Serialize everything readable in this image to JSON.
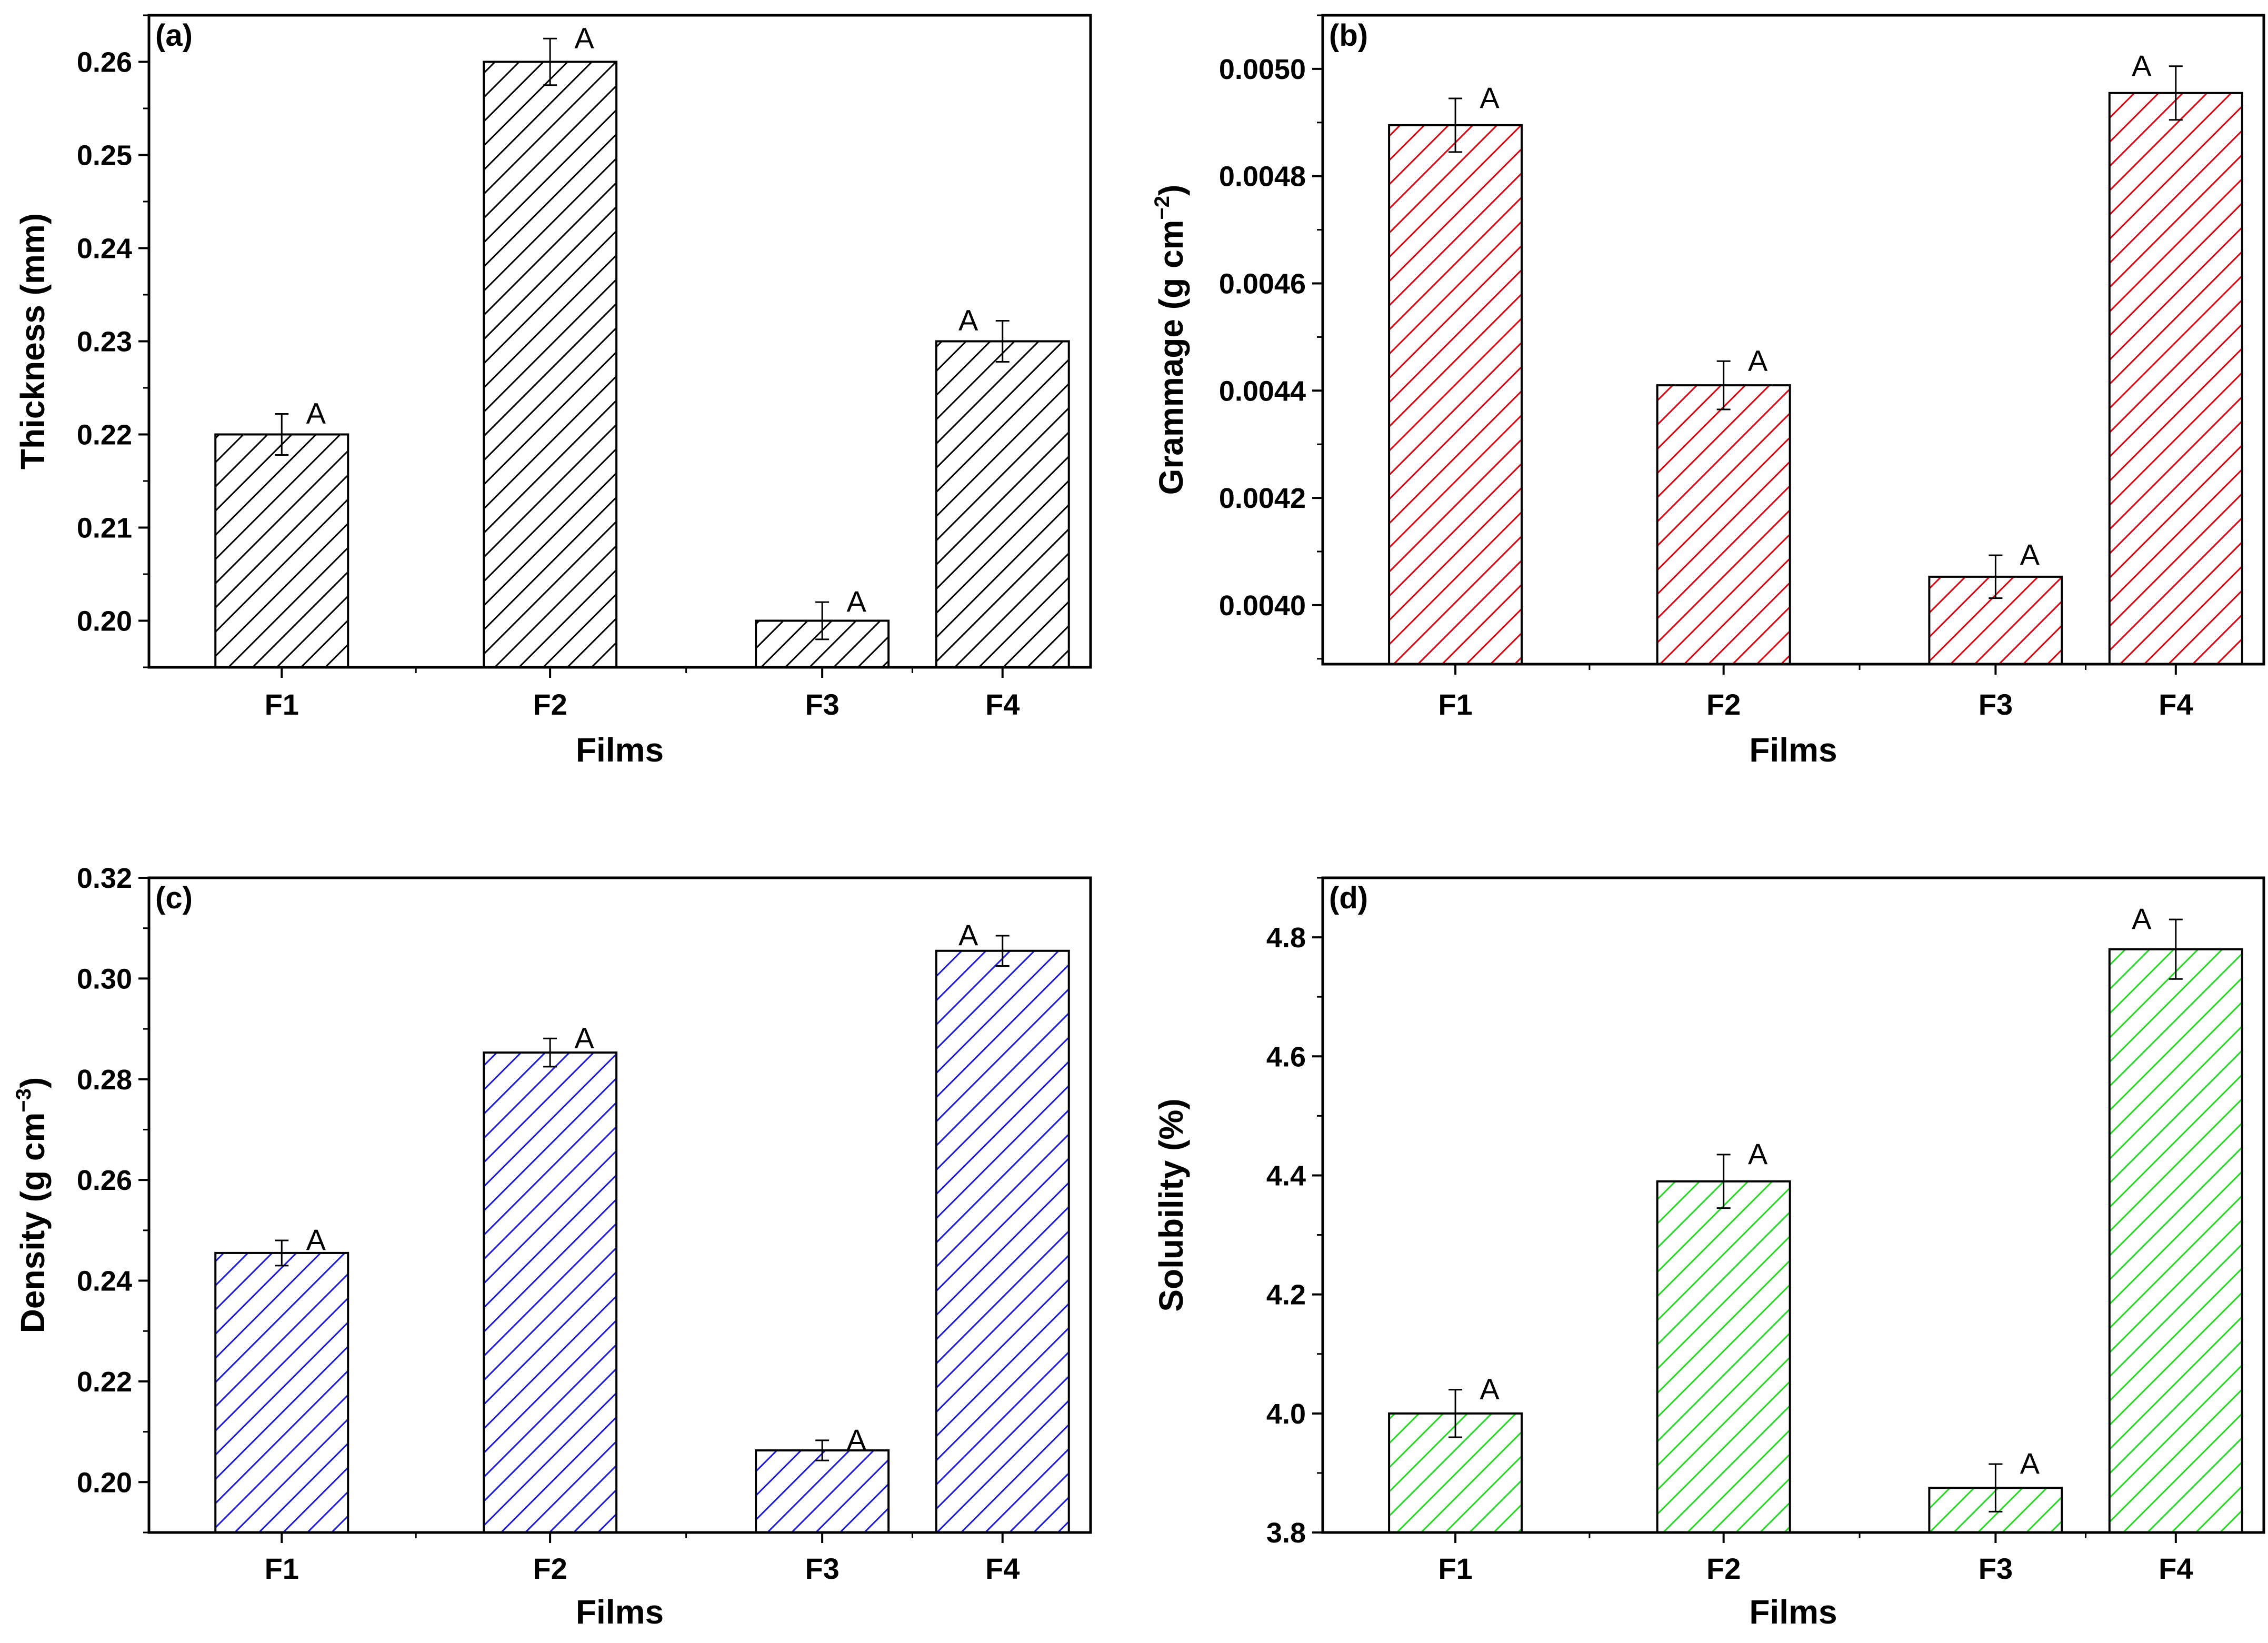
{
  "chart_data": [
    {
      "type": "bar",
      "panel": "(a)",
      "title": "",
      "xlabel": "Films",
      "ylabel": "Thickness (mm)",
      "ylabel_sup": "",
      "ylabel_end": "",
      "categories": [
        "F1",
        "F2",
        "F3",
        "F4"
      ],
      "values": [
        0.22,
        0.26,
        0.2,
        0.23
      ],
      "errors": [
        0.0022,
        0.0025,
        0.002,
        0.0022
      ],
      "significance": [
        "A",
        "A",
        "A",
        "A"
      ],
      "ylim": [
        0.195,
        0.265
      ],
      "yticks": [
        0.2,
        0.21,
        0.22,
        0.23,
        0.24,
        0.25,
        0.26
      ],
      "ytick_labels": [
        "0.20",
        "0.21",
        "0.22",
        "0.23",
        "0.24",
        "0.25",
        "0.26"
      ],
      "color": "#000000",
      "hatch": "diagonal"
    },
    {
      "type": "bar",
      "panel": "(b)",
      "title": "",
      "xlabel": "Films",
      "ylabel": "Grammage (g cm",
      "ylabel_sup": "−2",
      "ylabel_end": ")",
      "categories": [
        "F1",
        "F2",
        "F3",
        "F4"
      ],
      "values": [
        0.004895,
        0.00441,
        0.004053,
        0.004955
      ],
      "errors": [
        5e-05,
        4.5e-05,
        4e-05,
        5e-05
      ],
      "significance": [
        "A",
        "A",
        "A",
        "A"
      ],
      "ylim": [
        0.00389,
        0.0051
      ],
      "yticks": [
        0.004,
        0.0042,
        0.0044,
        0.0046,
        0.0048,
        0.005
      ],
      "ytick_labels": [
        "0.0040",
        "0.0042",
        "0.0044",
        "0.0046",
        "0.0048",
        "0.0050"
      ],
      "color": "#e3000f",
      "hatch": "diagonal"
    },
    {
      "type": "bar",
      "panel": "(c)",
      "title": "",
      "xlabel": "Films",
      "ylabel": "Density (g cm",
      "ylabel_sup": "−3",
      "ylabel_end": ")",
      "categories": [
        "F1",
        "F2",
        "F3",
        "F4"
      ],
      "values": [
        0.2455,
        0.2853,
        0.2063,
        0.3055
      ],
      "errors": [
        0.0025,
        0.0028,
        0.002,
        0.003
      ],
      "significance": [
        "A",
        "A",
        "A",
        "A"
      ],
      "ylim": [
        0.19,
        0.32
      ],
      "yticks": [
        0.2,
        0.22,
        0.24,
        0.26,
        0.28,
        0.3,
        0.32
      ],
      "ytick_labels": [
        "0.20",
        "0.22",
        "0.24",
        "0.26",
        "0.28",
        "0.30",
        "0.32"
      ],
      "color": "#1a1ae0",
      "hatch": "diagonal"
    },
    {
      "type": "bar",
      "panel": "(d)",
      "title": "",
      "xlabel": "Films",
      "ylabel": "Solubility (%)",
      "ylabel_sup": "",
      "ylabel_end": "",
      "categories": [
        "F1",
        "F2",
        "F3",
        "F4"
      ],
      "values": [
        4.0,
        4.39,
        3.875,
        4.78
      ],
      "errors": [
        0.04,
        0.045,
        0.04,
        0.05
      ],
      "significance": [
        "A",
        "A",
        "A",
        "A"
      ],
      "ylim": [
        3.8,
        4.9
      ],
      "yticks": [
        3.8,
        4.0,
        4.2,
        4.4,
        4.6,
        4.8
      ],
      "ytick_labels": [
        "3.8",
        "4.0",
        "4.2",
        "4.4",
        "4.6",
        "4.8"
      ],
      "color": "#22dd22",
      "hatch": "diagonal"
    }
  ]
}
